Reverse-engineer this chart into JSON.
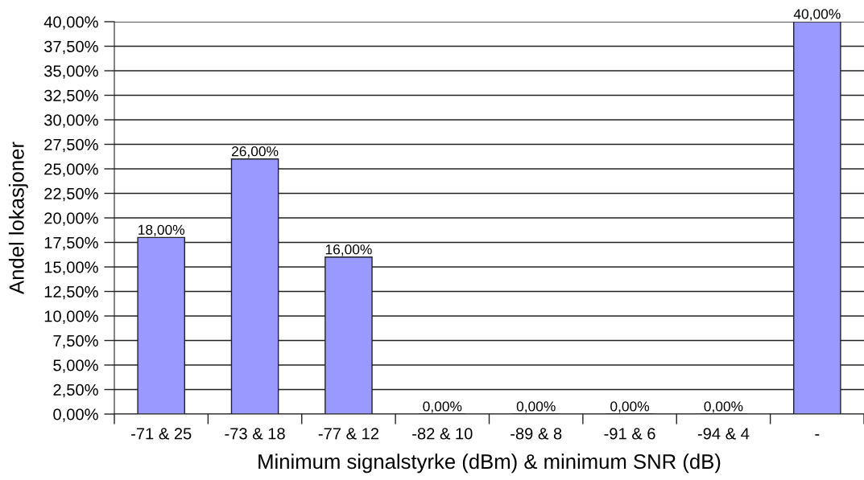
{
  "chart_data": {
    "type": "bar",
    "xlabel": "Minimum signalstyrke (dBm) & minimum SNR (dB)",
    "ylabel": "Andel lokasjoner",
    "categories": [
      "-71 & 25",
      "-73 & 18",
      "-77 & 12",
      "-82 & 10",
      "-89 & 8",
      "-91 & 6",
      "-94 & 4",
      "-"
    ],
    "values": [
      18,
      26,
      16,
      0,
      0,
      0,
      0,
      40
    ],
    "value_labels": [
      "18,00%",
      "26,00%",
      "16,00%",
      "0,00%",
      "0,00%",
      "0,00%",
      "0,00%",
      "40,00%"
    ],
    "colors": [
      "#9999ff",
      "#9999ff",
      "#9999ff",
      "#222222",
      "#222222",
      "#222222",
      "#222222",
      "#9999ff"
    ],
    "ylim": [
      0,
      40
    ],
    "yticks": [
      {
        "value": 0,
        "label": "0,00%"
      },
      {
        "value": 2.5,
        "label": "2,50%"
      },
      {
        "value": 5,
        "label": "5,00%"
      },
      {
        "value": 7.5,
        "label": "7,50%"
      },
      {
        "value": 10,
        "label": "10,00%"
      },
      {
        "value": 12.5,
        "label": "12,50%"
      },
      {
        "value": 15,
        "label": "15,00%"
      },
      {
        "value": 17.5,
        "label": "17,50%"
      },
      {
        "value": 20,
        "label": "20,00%"
      },
      {
        "value": 22.5,
        "label": "22,50%"
      },
      {
        "value": 25,
        "label": "25,00%"
      },
      {
        "value": 27.5,
        "label": "27,50%"
      },
      {
        "value": 30,
        "label": "30,00%"
      },
      {
        "value": 32.5,
        "label": "32,50%"
      },
      {
        "value": 35,
        "label": "35,00%"
      },
      {
        "value": 37.5,
        "label": "37,50%"
      },
      {
        "value": 40,
        "label": "40,00%"
      }
    ],
    "grid": "y"
  }
}
